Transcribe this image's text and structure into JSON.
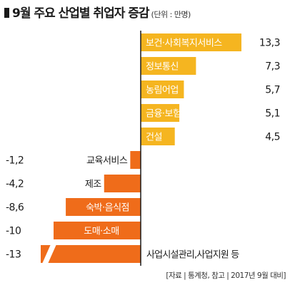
{
  "title": "9월 주요 산업별 취업자 증감",
  "unit_note": "(단위 : 만명)",
  "source": "[자료 | 통계청, 참고 | 2017년 9월 대비]",
  "colors": {
    "positive": "#f5b520",
    "negative": "#ef6c1a",
    "axis": "#1a1a1a",
    "text": "#1a1a1a",
    "label_on_bar": "#ffffff"
  },
  "chart_data": {
    "type": "bar",
    "orientation": "horizontal",
    "categories": [
      "보건·사회복지서비스",
      "정보통신",
      "농림어업",
      "금융·보험",
      "건설",
      "교육서비스",
      "제조",
      "숙박·음식점",
      "도매·소매",
      "사업시설관리,사업지원 등"
    ],
    "values": [
      13.3,
      7.3,
      5.7,
      5.1,
      4.5,
      -1.2,
      -4.2,
      -8.6,
      -10,
      -13
    ],
    "value_labels": [
      "13,3",
      "7,3",
      "5,7",
      "5,1",
      "4,5",
      "-1,2",
      "-4,2",
      "-8,6",
      "-10",
      "-13"
    ],
    "axis_break_on": "사업시설관리,사업지원 등",
    "title": "9월 주요 산업별 취업자 증감",
    "xlabel": "",
    "ylabel": "",
    "grid": false,
    "legend": "none"
  }
}
